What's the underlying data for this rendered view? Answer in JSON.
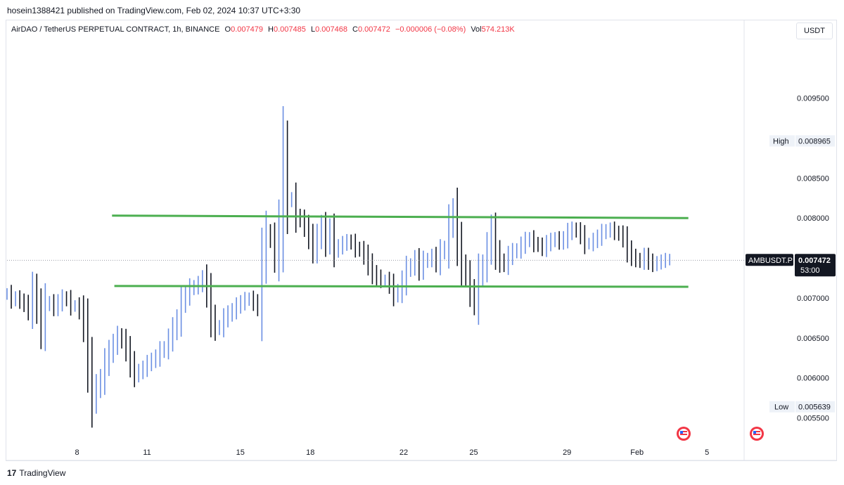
{
  "publisher": "hosein1388421 published on TradingView.com, Feb 02, 2024 10:37 UTC+3:30",
  "legend": {
    "symbol_desc": "AirDAO / TetherUS PERPETUAL CONTRACT, 1h, BINANCE",
    "o_label": "O",
    "o_value": "0.007479",
    "h_label": "H",
    "h_value": "0.007485",
    "l_label": "L",
    "l_value": "0.007468",
    "c_label": "C",
    "c_value": "0.007472",
    "change": "−0.000006 (−0.08%)",
    "vol_label": "Vol",
    "vol_value": "574.213K"
  },
  "currency_button": "USDT",
  "footer": {
    "brand": "TradingView",
    "logo_text": "17"
  },
  "colors": {
    "up": "#6b8fe3",
    "down": "#131722",
    "lines": "#4caf50",
    "accent_red": "#f23645"
  },
  "chart_data": {
    "type": "line",
    "ylim": [
      0.0051,
      0.0102
    ],
    "y_ticks": [
      "0.009500",
      "0.008500",
      "0.008000",
      "0.007000",
      "0.006500",
      "0.006000",
      "0.005500"
    ],
    "x_ticks": [
      "8",
      "11",
      "15",
      "18",
      "22",
      "25",
      "29",
      "Feb",
      "5"
    ],
    "series": [
      {
        "values": [
          0.00705,
          0.00698,
          0.007,
          0.00696,
          0.00692,
          0.00684,
          0.0071,
          0.00688,
          0.0066,
          0.00692,
          0.00694,
          0.00688,
          0.00694,
          0.007,
          0.00698,
          0.0069,
          0.0069,
          0.00684,
          0.00664,
          0.00617,
          0.00572,
          0.00588,
          0.00598,
          0.00618,
          0.00632,
          0.00642,
          0.00652,
          0.00647,
          0.00635,
          0.00618,
          0.00604,
          0.00608,
          0.00612,
          0.00618,
          0.00622,
          0.00626,
          0.00634,
          0.00637,
          0.00648,
          0.00661,
          0.00672,
          0.00694,
          0.00703,
          0.00712,
          0.00714,
          0.00718,
          0.00724,
          0.00706,
          0.00676,
          0.00662,
          0.00664,
          0.00674,
          0.0068,
          0.00684,
          0.0069,
          0.00694,
          0.00698,
          0.00699,
          0.00694,
          0.00688,
          0.00746,
          0.00781,
          0.00774,
          0.00752,
          0.00792,
          0.0088,
          0.00822,
          0.00824,
          0.00802,
          0.00798,
          0.00789,
          0.00776,
          0.0076,
          0.00776,
          0.00789,
          0.0077,
          0.00784,
          0.0076,
          0.00764,
          0.00768,
          0.00771,
          0.00769,
          0.00762,
          0.0076,
          0.00753,
          0.00742,
          0.00731,
          0.00726,
          0.00722,
          0.00722,
          0.00716,
          0.00704,
          0.00708,
          0.0072,
          0.00736,
          0.0074,
          0.00748,
          0.00736,
          0.00746,
          0.00748,
          0.00752,
          0.00744,
          0.00758,
          0.00762,
          0.00792,
          0.00808,
          0.0077,
          0.0074,
          0.00728,
          0.00708,
          0.00694,
          0.00728,
          0.0074,
          0.00762,
          0.00784,
          0.00758,
          0.00746,
          0.00742,
          0.00752,
          0.00758,
          0.0076,
          0.00766,
          0.00772,
          0.00774,
          0.00768,
          0.00766,
          0.00762,
          0.00768,
          0.00772,
          0.00774,
          0.0077,
          0.00774,
          0.00782,
          0.00786,
          0.00784,
          0.00778,
          0.00768,
          0.00768,
          0.00772,
          0.00776,
          0.00782,
          0.00784,
          0.00786,
          0.00782,
          0.0078,
          0.00774,
          0.0076,
          0.00752,
          0.00748,
          0.00746,
          0.00752,
          0.00746,
          0.00742,
          0.00744,
          0.00746,
          0.00748,
          0.00748
        ],
        "high": 0.008965,
        "low": 0.005639,
        "last": 0.007472
      }
    ],
    "levels": [
      {
        "x0": 9.5,
        "y0": 0.00803,
        "x1": 34.2,
        "y1": 0.008
      },
      {
        "x0": 9.6,
        "y0": 0.00715,
        "x1": 34.2,
        "y1": 0.00714
      }
    ],
    "x_start_day": 5.0,
    "x_end_day": 36.5,
    "labels": {
      "high_label": "High",
      "high_value": "0.008965",
      "low_label": "Low",
      "low_value": "0.005639",
      "symbol_tag": "AMBUSDT.P",
      "last_value": "0.007472",
      "countdown": "53:00"
    }
  }
}
